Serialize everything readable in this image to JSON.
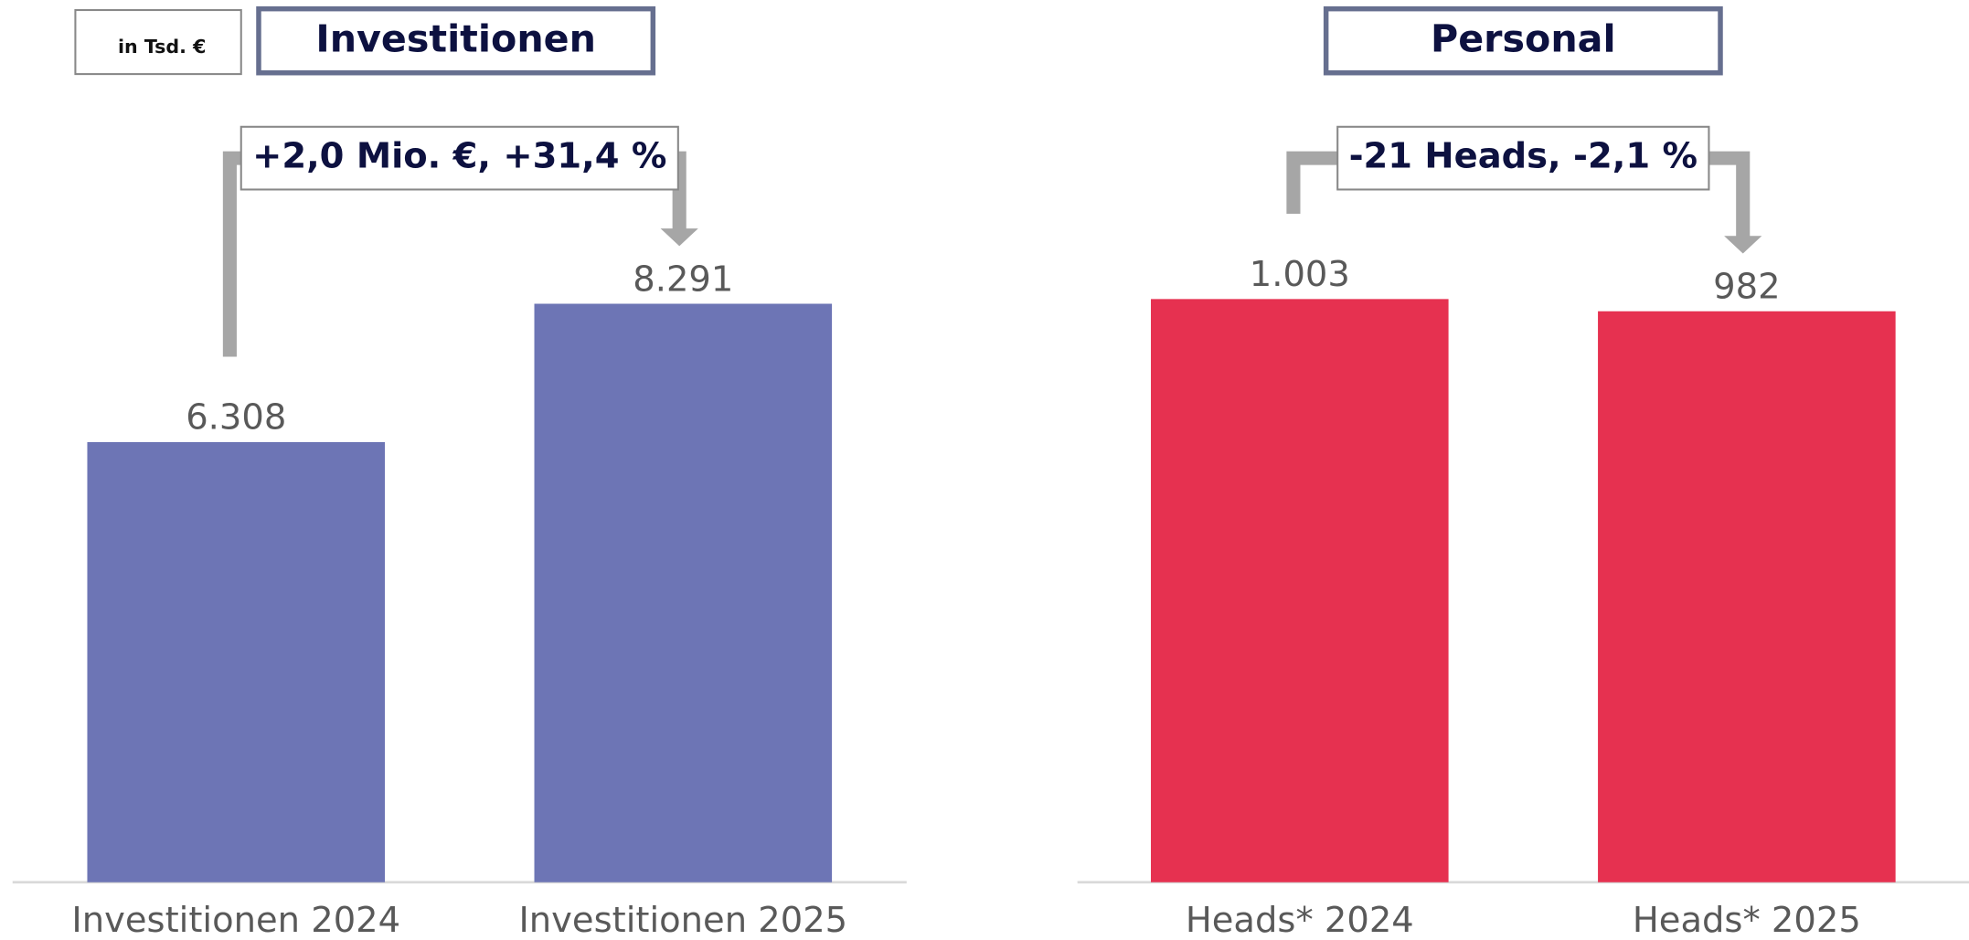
{
  "unit": "in Tsd. €",
  "chart_data": [
    {
      "type": "bar",
      "title": "Investitionen",
      "annotation": "+2,0 Mio. €, +31,4 %",
      "categories": [
        "Investitionen 2024",
        "Investitionen 2025"
      ],
      "values": [
        6308,
        8291
      ],
      "value_labels": [
        "6.308",
        "8.291"
      ],
      "color": "#6d75b5",
      "ylim": [
        0,
        10000
      ],
      "grid": false
    },
    {
      "type": "bar",
      "title": "Personal",
      "annotation": "-21 Heads, -2,1 %",
      "categories": [
        "Heads* 2024",
        "Heads* 2025"
      ],
      "values": [
        1003,
        982
      ],
      "value_labels": [
        "1.003",
        "982"
      ],
      "color": "#e63150",
      "ylim": [
        0,
        1200
      ],
      "grid": false
    }
  ]
}
